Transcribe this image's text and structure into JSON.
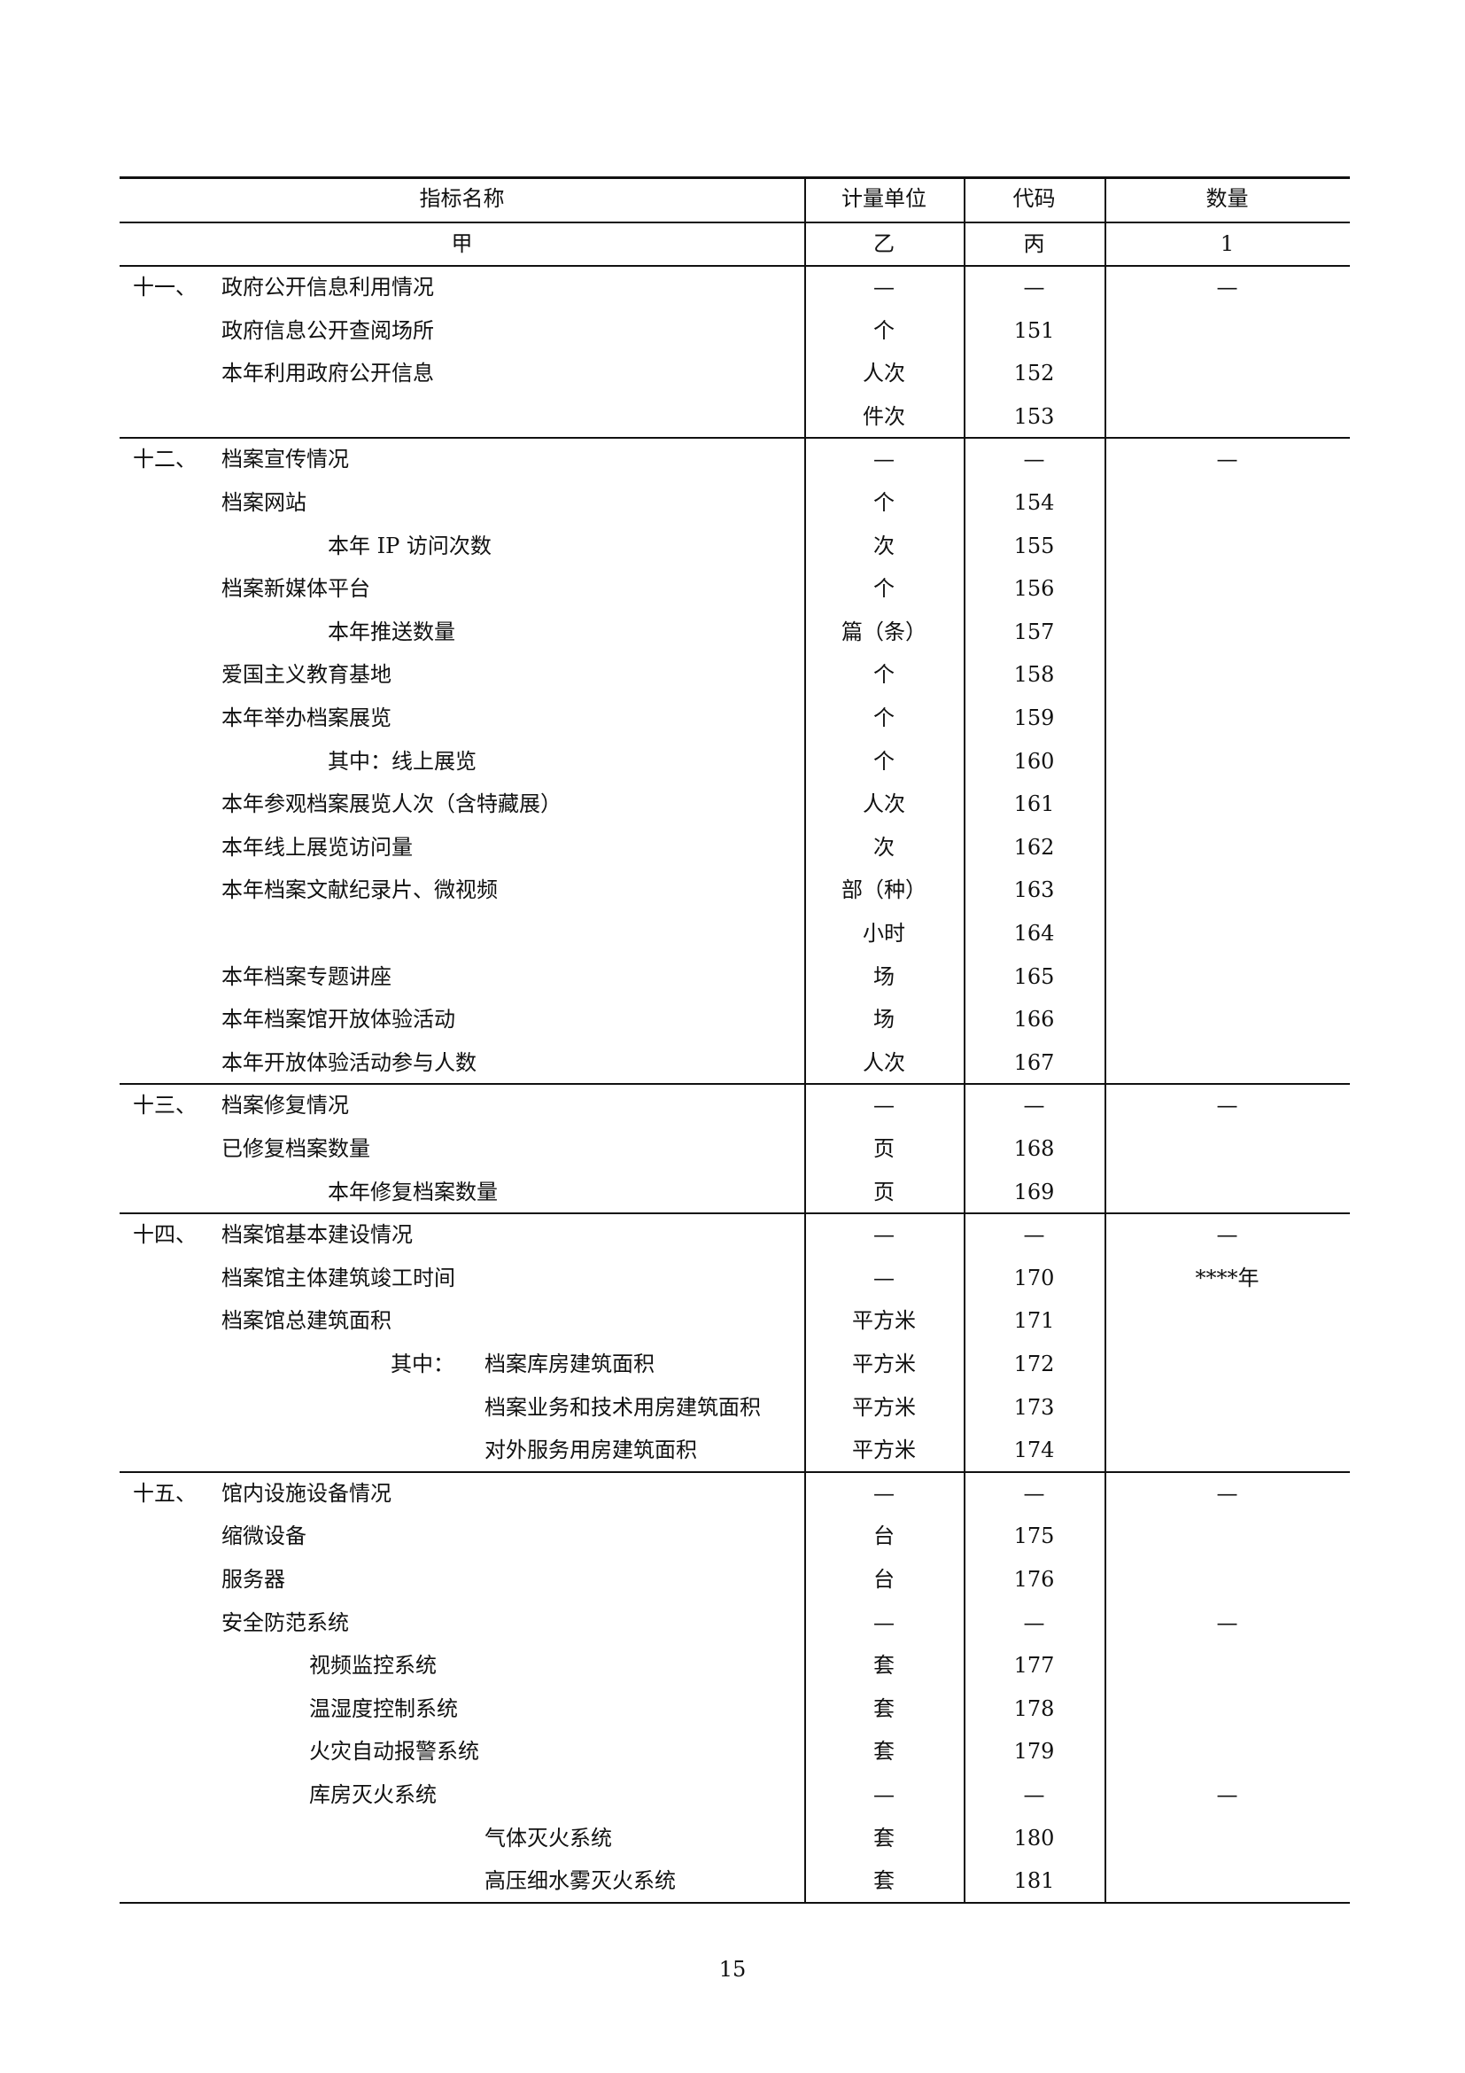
{
  "header": {
    "columns": [
      "指标名称",
      "计量单位",
      "代码",
      "数量"
    ],
    "column_codes": [
      "甲",
      "乙",
      "丙",
      "1"
    ]
  },
  "sections": [
    {
      "rows": [
        {
          "num": "十一、",
          "name": "政府公开信息利用情况",
          "level": 1,
          "unit": "—",
          "code": "—",
          "qty": "—"
        },
        {
          "name": "政府信息公开查阅场所",
          "level": 1,
          "unit": "个",
          "code": "151"
        },
        {
          "name": "本年利用政府公开信息",
          "level": 1,
          "unit": "人次",
          "code": "152"
        },
        {
          "name": "",
          "level": 1,
          "unit": "件次",
          "code": "153"
        }
      ]
    },
    {
      "rows": [
        {
          "num": "十二、",
          "name": "档案宣传情况",
          "level": 1,
          "unit": "—",
          "code": "—",
          "qty": "—"
        },
        {
          "name": "档案网站",
          "level": 1,
          "unit": "个",
          "code": "154"
        },
        {
          "name": "本年 IP 访问次数",
          "level": 2,
          "unit": "次",
          "code": "155"
        },
        {
          "name": "档案新媒体平台",
          "level": 1,
          "unit": "个",
          "code": "156"
        },
        {
          "name": "本年推送数量",
          "level": 2,
          "unit": "篇（条）",
          "code": "157"
        },
        {
          "name": "爱国主义教育基地",
          "level": 1,
          "unit": "个",
          "code": "158"
        },
        {
          "name": "本年举办档案展览",
          "level": 1,
          "unit": "个",
          "code": "159"
        },
        {
          "name": "其中：线上展览",
          "level": 2,
          "unit": "个",
          "code": "160"
        },
        {
          "name": "本年参观档案展览人次（含特藏展）",
          "level": 1,
          "unit": "人次",
          "code": "161"
        },
        {
          "name": "本年线上展览访问量",
          "level": 1,
          "unit": "次",
          "code": "162"
        },
        {
          "name": "本年档案文献纪录片、微视频",
          "level": 1,
          "unit": "部（种）",
          "code": "163"
        },
        {
          "name": "",
          "level": 1,
          "unit": "小时",
          "code": "164"
        },
        {
          "name": "本年档案专题讲座",
          "level": 1,
          "unit": "场",
          "code": "165"
        },
        {
          "name": "本年档案馆开放体验活动",
          "level": 1,
          "unit": "场",
          "code": "166"
        },
        {
          "name": "本年开放体验活动参与人数",
          "level": 1,
          "unit": "人次",
          "code": "167"
        }
      ]
    },
    {
      "rows": [
        {
          "num": "十三、",
          "name": "档案修复情况",
          "level": 1,
          "unit": "—",
          "code": "—",
          "qty": "—"
        },
        {
          "name": "已修复档案数量",
          "level": 1,
          "unit": "页",
          "code": "168"
        },
        {
          "name": "本年修复档案数量",
          "level": 2,
          "unit": "页",
          "code": "169"
        }
      ]
    },
    {
      "rows": [
        {
          "num": "十四、",
          "name": "档案馆基本建设情况",
          "level": 1,
          "unit": "—",
          "code": "—",
          "qty": "—"
        },
        {
          "name": "档案馆主体建筑竣工时间",
          "level": 1,
          "unit": "—",
          "code": "170",
          "qty": "****年"
        },
        {
          "name": "档案馆总建筑面积",
          "level": 1,
          "unit": "平方米",
          "code": "171"
        },
        {
          "prefix": "其中：",
          "name": "档案库房建筑面积",
          "level": 4,
          "unit": "平方米",
          "code": "172"
        },
        {
          "name": "档案业务和技术用房建筑面积",
          "level": 4,
          "unit": "平方米",
          "code": "173"
        },
        {
          "name": "对外服务用房建筑面积",
          "level": 4,
          "unit": "平方米",
          "code": "174"
        }
      ]
    },
    {
      "rows": [
        {
          "num": "十五、",
          "name": "馆内设施设备情况",
          "level": 1,
          "unit": "—",
          "code": "—",
          "qty": "—"
        },
        {
          "name": "缩微设备",
          "level": 1,
          "unit": "台",
          "code": "175"
        },
        {
          "name": "服务器",
          "level": 1,
          "unit": "台",
          "code": "176"
        },
        {
          "name": "安全防范系统",
          "level": 1,
          "unit": "—",
          "code": "—",
          "qty": "—"
        },
        {
          "name": "视频监控系统",
          "level": 3,
          "unit": "套",
          "code": "177"
        },
        {
          "name": "温湿度控制系统",
          "level": 3,
          "unit": "套",
          "code": "178"
        },
        {
          "name": "火灾自动报警系统",
          "level": 3,
          "unit": "套",
          "code": "179"
        },
        {
          "name": "库房灭火系统",
          "level": 3,
          "unit": "—",
          "code": "—",
          "qty": "—"
        },
        {
          "name": "气体灭火系统",
          "level": 4,
          "unit": "套",
          "code": "180"
        },
        {
          "name": "高压细水雾灭火系统",
          "level": 4,
          "unit": "套",
          "code": "181"
        }
      ]
    }
  ],
  "page_number": "15"
}
